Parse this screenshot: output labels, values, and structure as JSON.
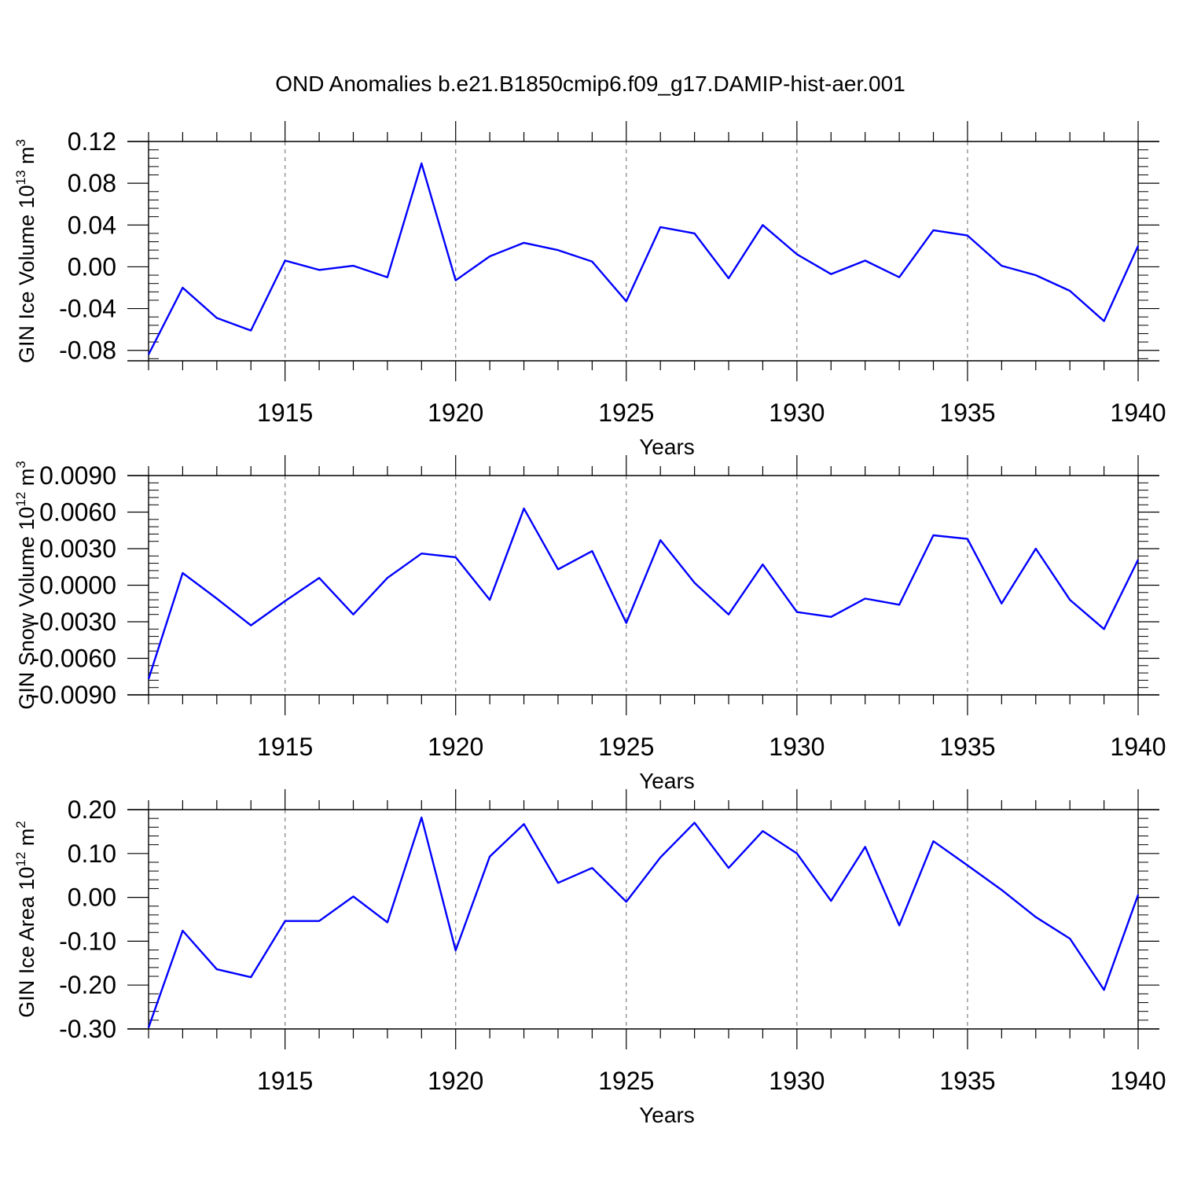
{
  "title": "OND Anomalies b.e21.B1850cmip6.f09_g17.DAMIP-hist-aer.001",
  "colors": {
    "line": "#0000ff",
    "axis": "#000000",
    "grid": "#808080"
  },
  "chart_data": [
    {
      "type": "line",
      "ylabel": {
        "text": "GIN Ice Volume 10",
        "sup": "13",
        "tail": " m",
        "sup2": "3"
      },
      "xlabel": "Years",
      "xlim": [
        1911,
        1940
      ],
      "ylim": [
        -0.09,
        0.12
      ],
      "yticks": [
        -0.08,
        -0.04,
        0.0,
        0.04,
        0.08,
        0.12
      ],
      "ytick_labels": [
        "-0.08",
        "-0.04",
        "0.00",
        "0.04",
        "0.08",
        "0.12"
      ],
      "xticks": [
        1915,
        1920,
        1925,
        1930,
        1935,
        1940
      ],
      "xtick_labels": [
        "1915",
        "1920",
        "1925",
        "1930",
        "1935",
        "1940"
      ],
      "x": [
        1911,
        1912,
        1913,
        1914,
        1915,
        1916,
        1917,
        1918,
        1919,
        1920,
        1921,
        1922,
        1923,
        1924,
        1925,
        1926,
        1927,
        1928,
        1929,
        1930,
        1931,
        1932,
        1933,
        1934,
        1935,
        1936,
        1937,
        1938,
        1939,
        1940
      ],
      "values": [
        -0.084,
        -0.02,
        -0.049,
        -0.061,
        0.006,
        -0.003,
        0.001,
        -0.01,
        0.099,
        -0.013,
        0.01,
        0.023,
        0.016,
        0.005,
        -0.033,
        0.038,
        0.032,
        -0.011,
        0.04,
        0.012,
        -0.007,
        0.006,
        -0.01,
        0.035,
        0.03,
        0.001,
        -0.008,
        -0.023,
        -0.052,
        0.02
      ]
    },
    {
      "type": "line",
      "ylabel": {
        "text": "GIN Snow Volume 10",
        "sup": "12",
        "tail": " m",
        "sup2": "3"
      },
      "xlabel": "Years",
      "xlim": [
        1911,
        1940
      ],
      "ylim": [
        -0.009,
        0.009
      ],
      "yticks": [
        -0.009,
        -0.006,
        -0.003,
        0.0,
        0.003,
        0.006,
        0.009
      ],
      "ytick_labels": [
        "-0.0090",
        "-0.0060",
        "-0.0030",
        "0.0000",
        "0.0030",
        "0.0060",
        "0.0090"
      ],
      "xticks": [
        1915,
        1920,
        1925,
        1930,
        1935,
        1940
      ],
      "xtick_labels": [
        "1915",
        "1920",
        "1925",
        "1930",
        "1935",
        "1940"
      ],
      "x": [
        1911,
        1912,
        1913,
        1914,
        1915,
        1916,
        1917,
        1918,
        1919,
        1920,
        1921,
        1922,
        1923,
        1924,
        1925,
        1926,
        1927,
        1928,
        1929,
        1930,
        1931,
        1932,
        1933,
        1934,
        1935,
        1936,
        1937,
        1938,
        1939,
        1940
      ],
      "values": [
        -0.0077,
        0.001,
        -0.0011,
        -0.0033,
        -0.0013,
        0.0006,
        -0.0024,
        0.0006,
        0.0026,
        0.0023,
        -0.0012,
        0.0063,
        0.0013,
        0.0028,
        -0.0031,
        0.0037,
        0.0002,
        -0.0024,
        0.0017,
        -0.0022,
        -0.0026,
        -0.0011,
        -0.0016,
        0.0041,
        0.0038,
        -0.0015,
        0.003,
        -0.0012,
        -0.0036,
        0.0021
      ]
    },
    {
      "type": "line",
      "ylabel": {
        "text": "GIN Ice Area 10",
        "sup": "12",
        "tail": " m",
        "sup2": "2"
      },
      "xlabel": "Years",
      "xlim": [
        1911,
        1940
      ],
      "ylim": [
        -0.3,
        0.2
      ],
      "yticks": [
        -0.3,
        -0.2,
        -0.1,
        0.0,
        0.1,
        0.2
      ],
      "ytick_labels": [
        "-0.30",
        "-0.20",
        "-0.10",
        "0.00",
        "0.10",
        "0.20"
      ],
      "xticks": [
        1915,
        1920,
        1925,
        1930,
        1935,
        1940
      ],
      "xtick_labels": [
        "1915",
        "1920",
        "1925",
        "1930",
        "1935",
        "1940"
      ],
      "x": [
        1911,
        1912,
        1913,
        1914,
        1915,
        1916,
        1917,
        1918,
        1919,
        1920,
        1921,
        1922,
        1923,
        1924,
        1925,
        1926,
        1927,
        1928,
        1929,
        1930,
        1931,
        1932,
        1933,
        1934,
        1935,
        1936,
        1937,
        1938,
        1939,
        1940
      ],
      "values": [
        -0.297,
        -0.076,
        -0.164,
        -0.182,
        -0.054,
        -0.054,
        0.002,
        -0.057,
        0.182,
        -0.121,
        0.093,
        0.167,
        0.033,
        0.067,
        -0.01,
        0.091,
        0.17,
        0.067,
        0.151,
        0.1,
        -0.008,
        0.115,
        -0.064,
        0.128,
        0.073,
        0.017,
        -0.045,
        -0.094,
        -0.211,
        0.006
      ]
    }
  ]
}
